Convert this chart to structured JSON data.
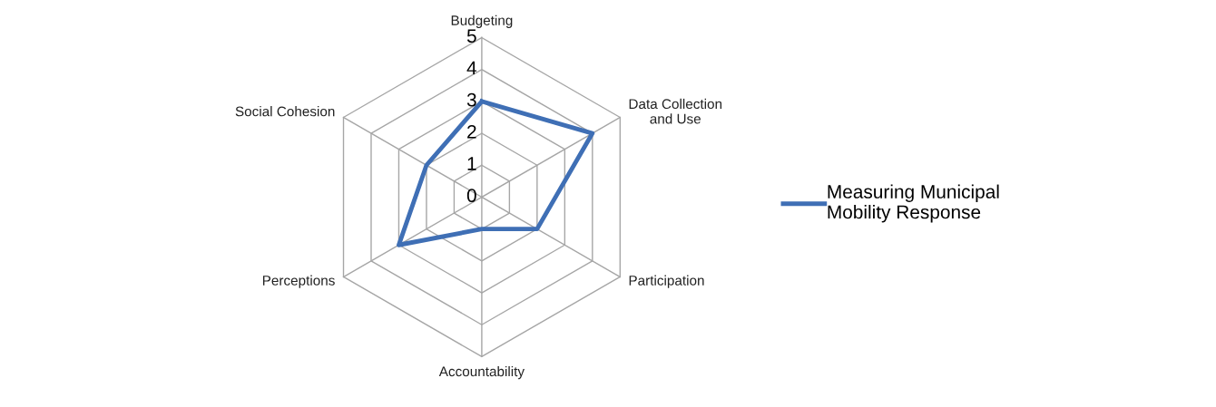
{
  "chart_data": {
    "type": "radar",
    "categories": [
      "Budgeting",
      "Data Collection\nand Use",
      "Participation",
      "Accountability",
      "Perceptions",
      "Social Cohesion"
    ],
    "series": [
      {
        "name": "Measuring Municipal\nMobility Response",
        "color": "#3f6fb5",
        "values": [
          3,
          4,
          2,
          1,
          3,
          2
        ]
      }
    ],
    "ylim": [
      0,
      5
    ],
    "yticks": [
      0,
      1,
      2,
      3,
      4,
      5
    ],
    "grid": true,
    "legend": "right"
  }
}
